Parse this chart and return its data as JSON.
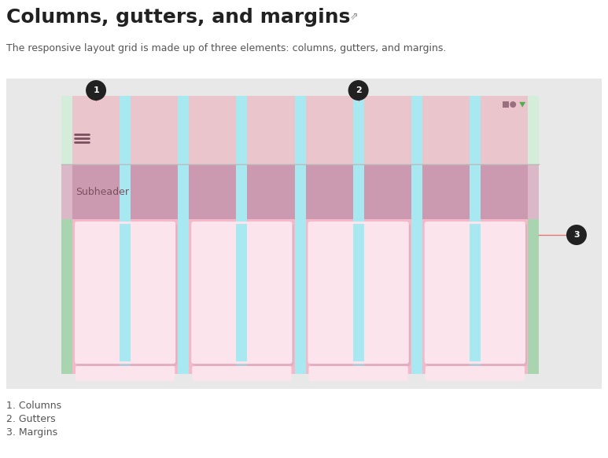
{
  "title": "Columns, gutters, and margins",
  "link_icon": "↗",
  "subtitle": "The responsive layout grid is made up of three elements: columns, gutters, and margins.",
  "legend_items": [
    "1. Columns",
    "2. Gutters",
    "3. Margins"
  ],
  "page_bg": "#ffffff",
  "grey_bg": "#e8e8e8",
  "margin_color": "#a8d5b0",
  "column_color": "#f4b8c8",
  "gutter_color": "#a8e8f0",
  "appbar_bg": "#d4edda",
  "subheader_bg": "#dbb8c8",
  "subheader_col_color": "#cc9ab0",
  "card_color": "#fce4ec",
  "card_shadow": "#c8a0b4",
  "subheader_text_color": "#7a5060",
  "hamburger_color": "#7a5060",
  "icon_sq_color": "#9a7080",
  "icon_circ_color": "#9a7080",
  "icon_tri_color": "#4caf50",
  "annotation_line_color": "#e57373",
  "annotation_bg": "#212121",
  "annotation_text": "#ffffff",
  "num_columns": 8,
  "title_fontsize": 18,
  "subtitle_fontsize": 9,
  "legend_fontsize": 9
}
